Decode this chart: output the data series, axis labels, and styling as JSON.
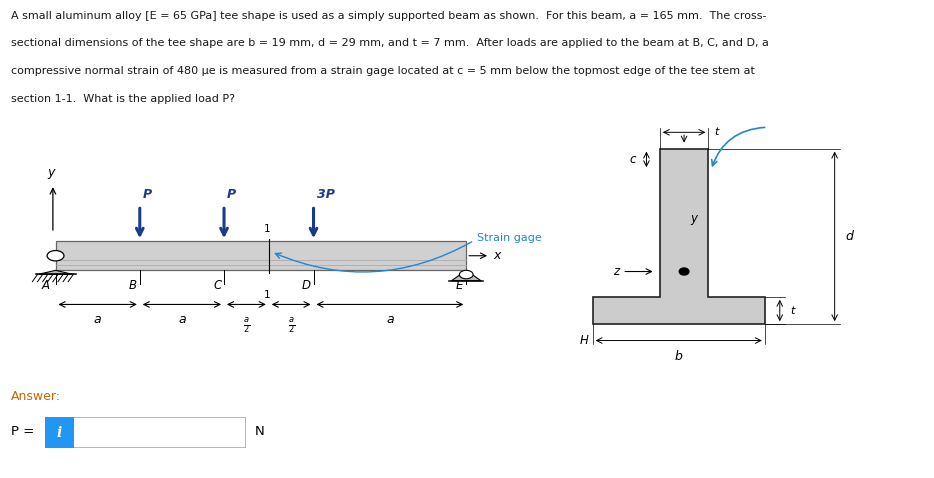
{
  "beam_color": "#d0d0d0",
  "beam_edge": "#666666",
  "beam_inner": "#999999",
  "arrow_color": "#1a3a8a",
  "strain_color": "#2288cc",
  "tee_color": "#cccccc",
  "tee_edge": "#222222",
  "text_color": "#1a1a1a",
  "answer_color": "#cc6600",
  "input_blue": "#2196F3",
  "input_border": "#aaaaaa",
  "line1": "A small aluminum alloy [E = 65 GPa] tee shape is used as a simply supported beam as shown.  For this beam, a = 165 mm.  The cross-",
  "line2": "sectional dimensions of the tee shape are b = 19 mm, d = 29 mm, and t = 7 mm.  After loads are applied to the beam at B, C, and D, a",
  "line3": "compressive normal strain of 480 μe is measured from a strain gage located at c = 5 mm below the topmost edge of the tee stem at",
  "line4": "section 1-1.  What is the applied load P?",
  "answer_label": "Answer:",
  "p_label": "P = ",
  "n_label": "N"
}
